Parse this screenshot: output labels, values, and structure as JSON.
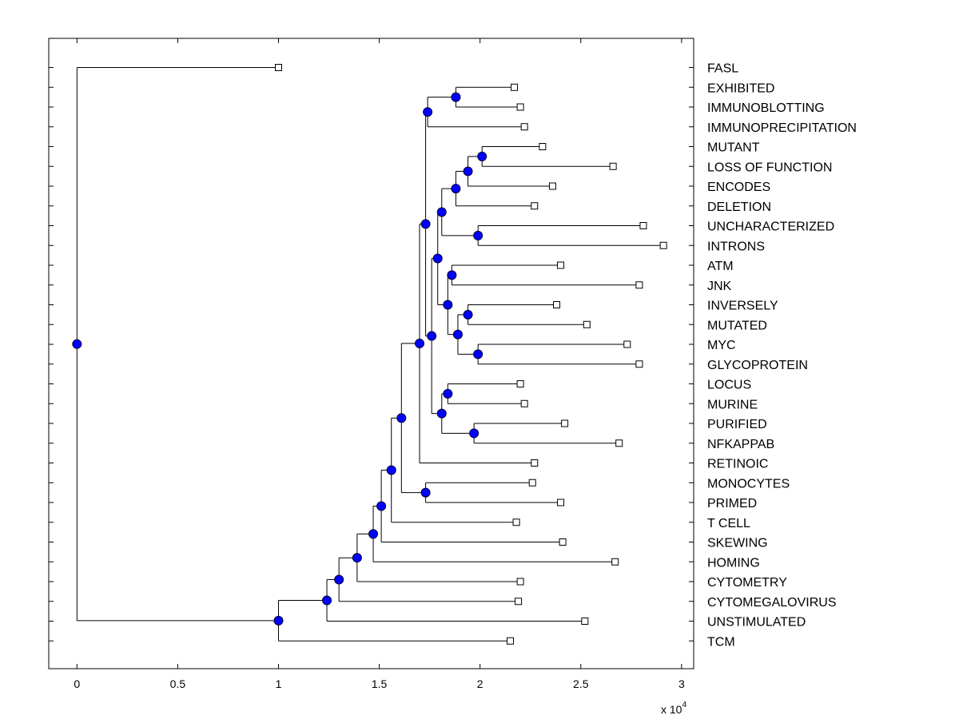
{
  "chart_data": {
    "type": "dendrogram",
    "x_axis": {
      "ticks": [
        0,
        0.5,
        1,
        1.5,
        2,
        2.5,
        3
      ],
      "tick_labels": [
        "0",
        "0.5",
        "1",
        "1.5",
        "2",
        "2.5",
        "3"
      ],
      "range": [
        -0.14,
        3.06
      ],
      "multiplier_base": "x 10",
      "multiplier_exp": "4"
    },
    "leaves": [
      {
        "label": "FASL",
        "x": 1.0
      },
      {
        "label": "EXHIBITED",
        "x": 2.17
      },
      {
        "label": "IMMUNOBLOTTING",
        "x": 2.2
      },
      {
        "label": "IMMUNOPRECIPITATION",
        "x": 2.22
      },
      {
        "label": "MUTANT",
        "x": 2.31
      },
      {
        "label": "LOSS OF FUNCTION",
        "x": 2.66
      },
      {
        "label": "ENCODES",
        "x": 2.36
      },
      {
        "label": "DELETION",
        "x": 2.27
      },
      {
        "label": "UNCHARACTERIZED",
        "x": 2.81
      },
      {
        "label": "INTRONS",
        "x": 2.91
      },
      {
        "label": "ATM",
        "x": 2.4
      },
      {
        "label": "JNK",
        "x": 2.79
      },
      {
        "label": "INVERSELY",
        "x": 2.38
      },
      {
        "label": "MUTATED",
        "x": 2.53
      },
      {
        "label": "MYC",
        "x": 2.73
      },
      {
        "label": "GLYCOPROTEIN",
        "x": 2.79
      },
      {
        "label": "LOCUS",
        "x": 2.2
      },
      {
        "label": "MURINE",
        "x": 2.22
      },
      {
        "label": "PURIFIED",
        "x": 2.42
      },
      {
        "label": "NFKAPPAB",
        "x": 2.69
      },
      {
        "label": "RETINOIC",
        "x": 2.27
      },
      {
        "label": "MONOCYTES",
        "x": 2.26
      },
      {
        "label": "PRIMED",
        "x": 2.4
      },
      {
        "label": "T CELL",
        "x": 2.18
      },
      {
        "label": "SKEWING",
        "x": 2.41
      },
      {
        "label": "HOMING",
        "x": 2.67
      },
      {
        "label": "CYTOMETRY",
        "x": 2.2
      },
      {
        "label": "CYTOMEGALOVIRUS",
        "x": 2.19
      },
      {
        "label": "UNSTIMULATED",
        "x": 2.52
      },
      {
        "label": "TCM",
        "x": 2.15
      }
    ],
    "nodes": [
      {
        "id": "n1",
        "x": 1.88,
        "children": [
          "l:1",
          "l:2"
        ]
      },
      {
        "id": "n2",
        "x": 1.74,
        "children": [
          "n1",
          "l:3"
        ]
      },
      {
        "id": "n3",
        "x": 2.01,
        "children": [
          "l:4",
          "l:5"
        ]
      },
      {
        "id": "n4",
        "x": 1.94,
        "children": [
          "n3",
          "l:6"
        ]
      },
      {
        "id": "n5",
        "x": 1.88,
        "children": [
          "n4",
          "l:7"
        ]
      },
      {
        "id": "n6",
        "x": 1.99,
        "children": [
          "l:8",
          "l:9"
        ]
      },
      {
        "id": "n7",
        "x": 1.81,
        "children": [
          "n5",
          "n6"
        ]
      },
      {
        "id": "n8",
        "x": 1.86,
        "children": [
          "l:10",
          "l:11"
        ]
      },
      {
        "id": "n9",
        "x": 1.94,
        "children": [
          "l:12",
          "l:13"
        ]
      },
      {
        "id": "n10",
        "x": 1.99,
        "children": [
          "l:14",
          "l:15"
        ]
      },
      {
        "id": "n11",
        "x": 1.89,
        "children": [
          "n9",
          "n10"
        ]
      },
      {
        "id": "n12",
        "x": 1.84,
        "children": [
          "n8",
          "n11"
        ]
      },
      {
        "id": "n13",
        "x": 1.79,
        "children": [
          "n7",
          "n12"
        ]
      },
      {
        "id": "n14",
        "x": 1.84,
        "children": [
          "l:16",
          "l:17"
        ]
      },
      {
        "id": "n15",
        "x": 1.97,
        "children": [
          "l:18",
          "l:19"
        ]
      },
      {
        "id": "n16",
        "x": 1.81,
        "children": [
          "n14",
          "n15"
        ]
      },
      {
        "id": "n17",
        "x": 1.76,
        "children": [
          "n13",
          "n16"
        ]
      },
      {
        "id": "n18",
        "x": 1.73,
        "children": [
          "n2",
          "n17"
        ]
      },
      {
        "id": "n19",
        "x": 1.7,
        "children": [
          "n18",
          "l:20"
        ]
      },
      {
        "id": "n20",
        "x": 1.73,
        "children": [
          "l:21",
          "l:22"
        ]
      },
      {
        "id": "n21",
        "x": 1.61,
        "children": [
          "n19",
          "n20"
        ]
      },
      {
        "id": "n22",
        "x": 1.56,
        "children": [
          "n21",
          "l:23"
        ]
      },
      {
        "id": "n23",
        "x": 1.51,
        "children": [
          "n22",
          "l:24"
        ]
      },
      {
        "id": "n24",
        "x": 1.47,
        "children": [
          "n23",
          "l:25"
        ]
      },
      {
        "id": "n25",
        "x": 1.39,
        "children": [
          "n24",
          "l:26"
        ]
      },
      {
        "id": "n26",
        "x": 1.3,
        "children": [
          "n25",
          "l:27"
        ]
      },
      {
        "id": "n27",
        "x": 1.24,
        "children": [
          "n26",
          "l:28"
        ]
      },
      {
        "id": "n28",
        "x": 1.0,
        "children": [
          "n27",
          "l:29"
        ]
      },
      {
        "id": "root",
        "x": 0.0,
        "children": [
          "l:0",
          "n28"
        ]
      }
    ]
  }
}
